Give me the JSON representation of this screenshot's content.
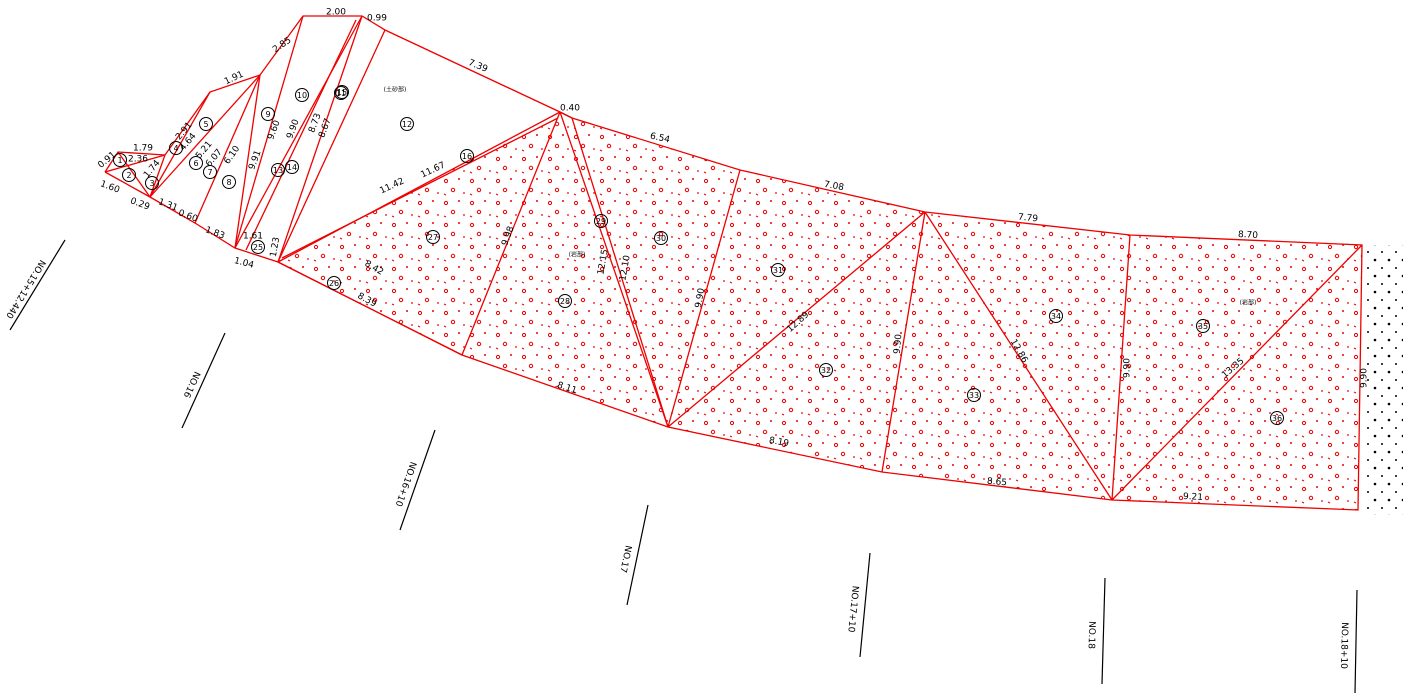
{
  "stations": [
    "NO.15+12.440",
    "NO.16",
    "NO.16+10",
    "NO.17",
    "NO.17+10",
    "NO.18",
    "NO.18+10"
  ],
  "zones": [
    "(土砂部)",
    "(岩部)",
    "(岩部)"
  ],
  "lengths": [
    "2.00",
    "0.99",
    "7.39",
    "2.85",
    "1.91",
    "0.40",
    "6.54",
    "7.08",
    "7.79",
    "8.70",
    "11.67",
    "11.42",
    "9.98",
    "12.15",
    "12.10",
    "9.90",
    "8.42",
    "8.39",
    "8.11",
    "8.19",
    "8.65",
    "9.21",
    "12.89",
    "9.90",
    "12.86",
    "13.35",
    "9.90",
    "9.90",
    "0.91",
    "1.79",
    "2.36",
    "1.60",
    "0.29",
    "1.31",
    "0.60",
    "1.83",
    "1.04",
    "1.61",
    "1.23",
    "2.91",
    "4.64",
    "5.21",
    "6.07",
    "6.10",
    "9.91",
    "9.60",
    "9.90",
    "8.73",
    "8.67",
    "1.74"
  ],
  "areas": [
    1,
    2,
    3,
    4,
    5,
    6,
    7,
    8,
    9,
    10,
    11,
    12,
    13,
    14,
    15,
    16,
    25,
    26,
    27,
    28,
    29,
    30,
    31,
    32,
    33,
    34,
    35,
    36
  ]
}
